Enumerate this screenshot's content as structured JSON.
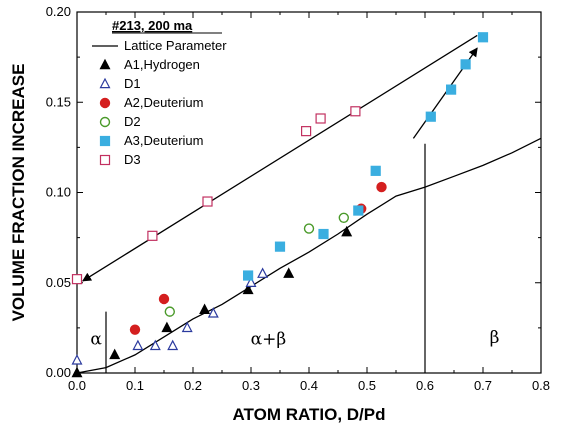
{
  "chart_data": {
    "type": "scatter",
    "title": "",
    "xlabel": "ATOM RATIO, D/Pd",
    "ylabel": "VOLUME FRACTION INCREASE",
    "xlim": [
      0,
      0.8
    ],
    "ylim": [
      0,
      0.2
    ],
    "x_ticks": [
      "0.0",
      "0.1",
      "0.2",
      "0.3",
      "0.4",
      "0.5",
      "0.6",
      "0.7",
      "0.8"
    ],
    "y_ticks": [
      "0.00",
      "0.05",
      "0.10",
      "0.15",
      "0.20"
    ],
    "grid": false,
    "legend": {
      "title": "#213, 200 ma",
      "placement": "top-left",
      "entries": [
        "Lattice Parameter",
        "A1,Hydrogen",
        "D1",
        "A2,Deuterium",
        "D2",
        "A3,Deuterium",
        "D3"
      ]
    },
    "lattice_parameter": {
      "name": "Lattice Parameter",
      "x": [
        0.0,
        0.05,
        0.1,
        0.15,
        0.2,
        0.25,
        0.3,
        0.35,
        0.4,
        0.45,
        0.5,
        0.55,
        0.6,
        0.65,
        0.7,
        0.75,
        0.8
      ],
      "y": [
        0.0,
        0.003,
        0.01,
        0.02,
        0.03,
        0.038,
        0.048,
        0.058,
        0.067,
        0.077,
        0.088,
        0.098,
        0.103,
        0.109,
        0.115,
        0.122,
        0.13
      ]
    },
    "series": [
      {
        "name": "A1,Hydrogen",
        "marker": "filled-triangle",
        "color": "#000000",
        "x": [
          0.0,
          0.065,
          0.155,
          0.22,
          0.295,
          0.365,
          0.465
        ],
        "y": [
          0.0,
          0.01,
          0.025,
          0.035,
          0.046,
          0.055,
          0.078
        ]
      },
      {
        "name": "D1",
        "marker": "open-triangle",
        "color": "#2b3a9e",
        "x": [
          0.0,
          0.105,
          0.135,
          0.165,
          0.19,
          0.235,
          0.3,
          0.32
        ],
        "y": [
          0.007,
          0.015,
          0.015,
          0.015,
          0.025,
          0.033,
          0.05,
          0.055
        ]
      },
      {
        "name": "A2,Deuterium",
        "marker": "filled-circle",
        "color": "#d41f1f",
        "x": [
          0.1,
          0.15,
          0.49,
          0.525
        ],
        "y": [
          0.024,
          0.041,
          0.091,
          0.103
        ]
      },
      {
        "name": "D2",
        "marker": "open-circle",
        "color": "#4a9a2a",
        "x": [
          0.16,
          0.4,
          0.46
        ],
        "y": [
          0.034,
          0.08,
          0.086
        ]
      },
      {
        "name": "A3,Deuterium",
        "marker": "filled-square",
        "color": "#3aaee0",
        "x": [
          0.295,
          0.35,
          0.425,
          0.485,
          0.515,
          0.61,
          0.645,
          0.67,
          0.7
        ],
        "y": [
          0.054,
          0.07,
          0.077,
          0.09,
          0.112,
          0.142,
          0.157,
          0.171,
          0.186
        ]
      },
      {
        "name": "D3",
        "marker": "open-square",
        "color": "#c23060",
        "x": [
          0.0,
          0.13,
          0.225,
          0.395,
          0.42,
          0.48
        ],
        "y": [
          0.052,
          0.076,
          0.095,
          0.134,
          0.141,
          0.145
        ]
      }
    ],
    "arrows": [
      {
        "from": [
          0.69,
          0.187
        ],
        "to": [
          0.01,
          0.051
        ]
      },
      {
        "from": [
          0.58,
          0.13
        ],
        "to": [
          0.69,
          0.18
        ]
      }
    ],
    "phase_boundaries": [
      {
        "x": 0.05,
        "y_top": 0.034
      },
      {
        "x": 0.6,
        "y_top": 0.127
      }
    ],
    "region_labels": [
      {
        "text": "α",
        "x": 0.033,
        "y": 0.019
      },
      {
        "text": "α+β",
        "x": 0.33,
        "y": 0.019
      },
      {
        "text": "β",
        "x": 0.72,
        "y": 0.02
      }
    ]
  }
}
